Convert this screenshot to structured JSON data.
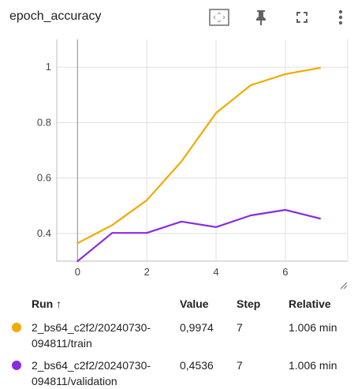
{
  "header": {
    "title": "epoch_accuracy"
  },
  "toolbar": {
    "icons": [
      "fit-domain-icon",
      "pin-icon",
      "fullscreen-icon",
      "more-vert-icon"
    ]
  },
  "chart_data": {
    "type": "line",
    "title": "",
    "xlabel": "",
    "ylabel": "",
    "xlim": [
      -0.6,
      7.8
    ],
    "ylim": [
      0.3,
      1.1
    ],
    "x_ticks": [
      "0",
      "2",
      "4",
      "6"
    ],
    "y_ticks": [
      "0.4",
      "0.6",
      "0.8",
      "1"
    ],
    "grid": true,
    "series": [
      {
        "name": "2_bs64_c2f2/20240730-094811/train",
        "color": "#f2aa00",
        "x": [
          0,
          1,
          2,
          3,
          4,
          5,
          6,
          7
        ],
        "y": [
          0.365,
          0.43,
          0.52,
          0.66,
          0.835,
          0.935,
          0.975,
          0.9974
        ]
      },
      {
        "name": "2_bs64_c2f2/20240730-094811/validation",
        "color": "#8a2be2",
        "x": [
          0,
          1,
          2,
          3,
          4,
          5,
          6,
          7
        ],
        "y": [
          0.3,
          0.402,
          0.402,
          0.443,
          0.423,
          0.465,
          0.485,
          0.4536
        ]
      }
    ]
  },
  "table": {
    "headers": {
      "run": "Run ↑",
      "value": "Value",
      "step": "Step",
      "relative": "Relative"
    },
    "rows": [
      {
        "color": "#f2aa00",
        "run_line1": "2_bs64_c2f2/20240730-",
        "run_line2": "094811/train",
        "value": "0,9974",
        "step": "7",
        "relative": "1.006 min"
      },
      {
        "color": "#8a2be2",
        "run_line1": "2_bs64_c2f2/20240730-",
        "run_line2": "094811/validation",
        "value": "0,4536",
        "step": "7",
        "relative": "1.006 min"
      }
    ]
  }
}
